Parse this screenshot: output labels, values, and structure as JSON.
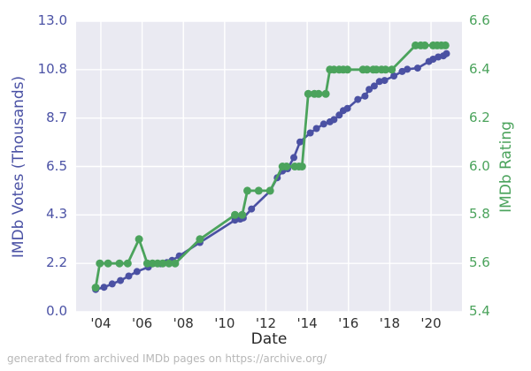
{
  "footer": {
    "text": "generated from archived IMDb pages on https://archive.org/"
  },
  "chart_data": {
    "type": "line",
    "title": "",
    "xlabel": "Date",
    "background_color": "#EAEAF2",
    "grid_color": "#FFFFFF",
    "grid": true,
    "legend_position": "none",
    "xlim": [
      2002.8,
      2021.5
    ],
    "x_ticks": [
      {
        "label": "'04",
        "value": 2004
      },
      {
        "label": "'06",
        "value": 2006
      },
      {
        "label": "'08",
        "value": 2008
      },
      {
        "label": "'10",
        "value": 2010
      },
      {
        "label": "'12",
        "value": 2012
      },
      {
        "label": "'14",
        "value": 2014
      },
      {
        "label": "'16",
        "value": 2016
      },
      {
        "label": "'18",
        "value": 2018
      },
      {
        "label": "'20",
        "value": 2020
      }
    ],
    "left_axis": {
      "label": "IMDb Votes (Thousands)",
      "color": "#4B52A5",
      "lim": [
        0,
        13.0
      ],
      "ticks": [
        {
          "label": "0.0",
          "value": 0
        },
        {
          "label": "2.2",
          "value": 2.1667
        },
        {
          "label": "4.3",
          "value": 4.3333
        },
        {
          "label": "6.5",
          "value": 6.5
        },
        {
          "label": "8.7",
          "value": 8.6667
        },
        {
          "label": "10.8",
          "value": 10.8333
        },
        {
          "label": "13.0",
          "value": 13.0
        }
      ]
    },
    "right_axis": {
      "label": "IMDb Rating",
      "color": "#4BA35C",
      "lim": [
        5.4,
        6.6
      ],
      "ticks": [
        {
          "label": "5.4",
          "value": 5.4
        },
        {
          "label": "5.6",
          "value": 5.6
        },
        {
          "label": "5.8",
          "value": 5.8
        },
        {
          "label": "6.0",
          "value": 6.0
        },
        {
          "label": "6.2",
          "value": 6.2
        },
        {
          "label": "6.4",
          "value": 6.4
        },
        {
          "label": "6.6",
          "value": 6.6
        }
      ]
    },
    "series": [
      {
        "name": "imdb-votes-thousands",
        "axis": "left",
        "color": "#4B51A3",
        "marker_radius": 4,
        "line_width": 2.6,
        "points": [
          [
            2003.75,
            1.0
          ],
          [
            2004.15,
            1.1
          ],
          [
            2004.55,
            1.25
          ],
          [
            2004.95,
            1.4
          ],
          [
            2005.35,
            1.6
          ],
          [
            2005.75,
            1.8
          ],
          [
            2006.3,
            2.0
          ],
          [
            2006.9,
            2.15
          ],
          [
            2007.2,
            2.2
          ],
          [
            2007.45,
            2.3
          ],
          [
            2007.8,
            2.5
          ],
          [
            2008.8,
            3.1
          ],
          [
            2010.5,
            4.1
          ],
          [
            2010.75,
            4.15
          ],
          [
            2010.9,
            4.2
          ],
          [
            2011.3,
            4.6
          ],
          [
            2012.2,
            5.4
          ],
          [
            2012.55,
            6.0
          ],
          [
            2012.8,
            6.3
          ],
          [
            2013.05,
            6.4
          ],
          [
            2013.35,
            6.9
          ],
          [
            2013.65,
            7.6
          ],
          [
            2014.15,
            8.0
          ],
          [
            2014.45,
            8.2
          ],
          [
            2014.8,
            8.4
          ],
          [
            2015.1,
            8.5
          ],
          [
            2015.3,
            8.6
          ],
          [
            2015.55,
            8.8
          ],
          [
            2015.75,
            9.0
          ],
          [
            2015.95,
            9.1
          ],
          [
            2016.45,
            9.5
          ],
          [
            2016.8,
            9.65
          ],
          [
            2017.0,
            9.95
          ],
          [
            2017.25,
            10.1
          ],
          [
            2017.5,
            10.3
          ],
          [
            2017.75,
            10.35
          ],
          [
            2018.2,
            10.55
          ],
          [
            2018.6,
            10.75
          ],
          [
            2018.85,
            10.85
          ],
          [
            2019.35,
            10.9
          ],
          [
            2019.9,
            11.2
          ],
          [
            2020.1,
            11.3
          ],
          [
            2020.35,
            11.4
          ],
          [
            2020.6,
            11.45
          ],
          [
            2020.75,
            11.55
          ]
        ]
      },
      {
        "name": "imdb-rating",
        "axis": "right",
        "color": "#4BA35C",
        "marker_radius": 4.5,
        "line_width": 2.8,
        "points": [
          [
            2003.75,
            5.5
          ],
          [
            2003.95,
            5.6
          ],
          [
            2004.35,
            5.6
          ],
          [
            2004.9,
            5.6
          ],
          [
            2005.3,
            5.6
          ],
          [
            2005.85,
            5.7
          ],
          [
            2006.25,
            5.6
          ],
          [
            2006.5,
            5.6
          ],
          [
            2006.75,
            5.6
          ],
          [
            2007.0,
            5.6
          ],
          [
            2007.3,
            5.6
          ],
          [
            2007.6,
            5.6
          ],
          [
            2008.8,
            5.7
          ],
          [
            2010.5,
            5.8
          ],
          [
            2010.85,
            5.8
          ],
          [
            2011.1,
            5.9
          ],
          [
            2011.65,
            5.9
          ],
          [
            2012.2,
            5.9
          ],
          [
            2012.8,
            6.0
          ],
          [
            2013.0,
            6.0
          ],
          [
            2013.4,
            6.0
          ],
          [
            2013.6,
            6.0
          ],
          [
            2013.75,
            6.0
          ],
          [
            2014.05,
            6.3
          ],
          [
            2014.35,
            6.3
          ],
          [
            2014.55,
            6.3
          ],
          [
            2014.9,
            6.3
          ],
          [
            2015.1,
            6.4
          ],
          [
            2015.3,
            6.4
          ],
          [
            2015.55,
            6.4
          ],
          [
            2015.75,
            6.4
          ],
          [
            2015.95,
            6.4
          ],
          [
            2016.7,
            6.4
          ],
          [
            2016.9,
            6.4
          ],
          [
            2017.2,
            6.4
          ],
          [
            2017.35,
            6.4
          ],
          [
            2017.6,
            6.4
          ],
          [
            2017.8,
            6.4
          ],
          [
            2018.1,
            6.4
          ],
          [
            2019.25,
            6.5
          ],
          [
            2019.5,
            6.5
          ],
          [
            2019.7,
            6.5
          ],
          [
            2020.1,
            6.5
          ],
          [
            2020.3,
            6.5
          ],
          [
            2020.5,
            6.5
          ],
          [
            2020.7,
            6.5
          ]
        ]
      }
    ]
  }
}
